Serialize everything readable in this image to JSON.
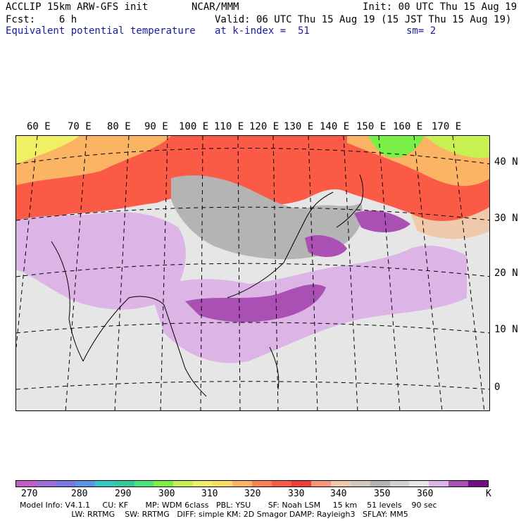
{
  "header": {
    "line1_left": "ACCLIP 15km ARW-GFS init",
    "line1_mid": "NCAR/MMM",
    "line1_right": "Init: 00 UTC Thu 15 Aug 19",
    "line2_left": "Fcst:    6 h",
    "line2_mid": "Valid: 06 UTC Thu 15 Aug 19 (15 JST Thu 15 Aug 19)",
    "line3_left": "Equivalent potential temperature",
    "line3_mid": "at k-index =  51",
    "line3_right": "sm= 2"
  },
  "lon_labels": [
    "60 E",
    "70 E",
    "80 E",
    "90 E",
    "100 E",
    "110 E",
    "120 E",
    "130 E",
    "140 E",
    "150 E",
    "160 E",
    "170 E"
  ],
  "lat_labels": [
    "40 N",
    "30 N",
    "20 N",
    "10 N",
    "0"
  ],
  "colorbar": {
    "colors": [
      "#c85ac8",
      "#a06edc",
      "#7878e6",
      "#5a96e6",
      "#32c8c8",
      "#32c8a0",
      "#46e67a",
      "#78f046",
      "#c8f050",
      "#f0f064",
      "#fadc64",
      "#fab464",
      "#fa8250",
      "#fa5a46",
      "#f03c3c",
      "#fa9678",
      "#f0c8aa",
      "#d2c8be",
      "#b4b4b4",
      "#d2d2d2",
      "#e6e6e6",
      "#dcb4e6",
      "#aa50b4",
      "#7a0a8c"
    ],
    "ticks": [
      "270",
      "280",
      "290",
      "300",
      "310",
      "320",
      "330",
      "340",
      "350",
      "360",
      "K"
    ]
  },
  "footer": {
    "line1": "Model Info: V4.1.1     CU: KF       MP: WDM 6class   PBL: YSU       SF: Noah LSM     15 km    51 levels    90 sec",
    "line2": "                     LW: RRTMG    SW: RRTMG   DIFF: simple KM: 2D Smagor DAMP: Rayleigh3   SFLAY: MM5"
  }
}
